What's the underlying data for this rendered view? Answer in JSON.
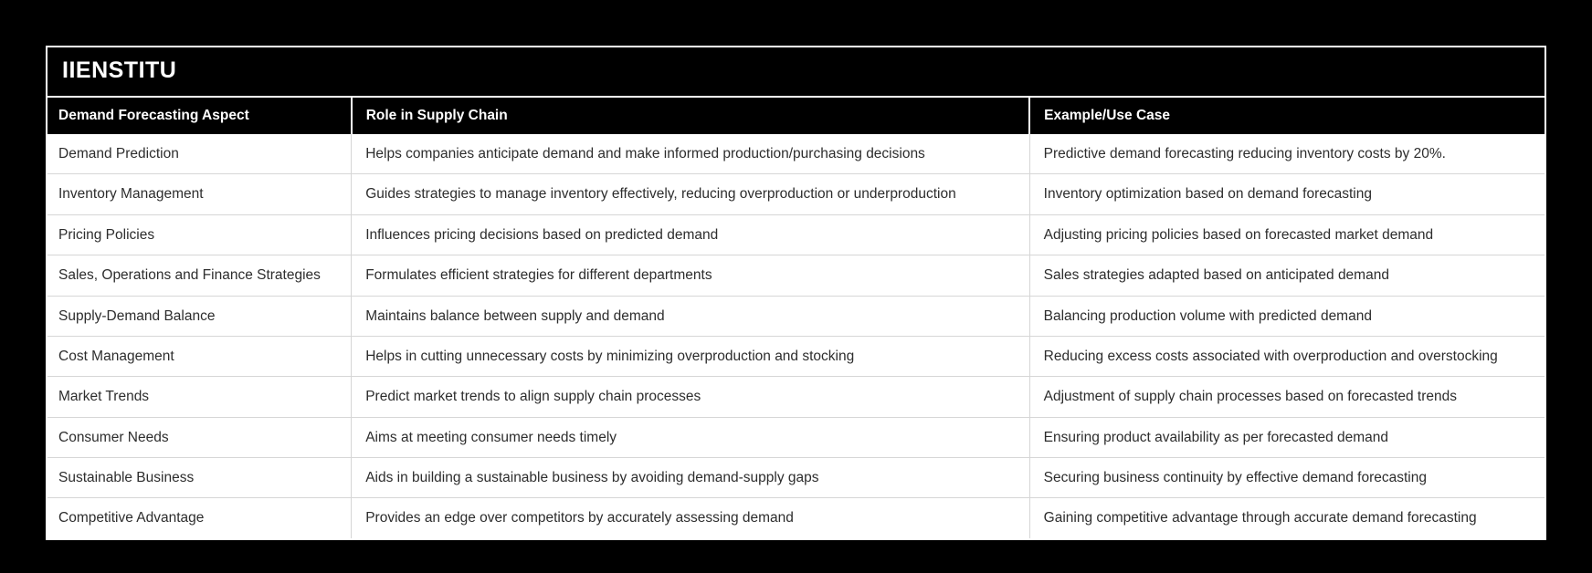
{
  "brand": {
    "title": "IIENSTITU"
  },
  "colors": {
    "page_background": "#000000",
    "header_background": "#000000",
    "header_text": "#ffffff",
    "row_background": "#ffffff",
    "body_text": "#2d2d2d",
    "grid_line": "#d6d6d6",
    "card_border": "#ffffff"
  },
  "table": {
    "columns": [
      "Demand Forecasting Aspect",
      "Role in Supply Chain",
      "Example/Use Case"
    ],
    "rows": [
      [
        "Demand Prediction",
        "Helps companies anticipate demand and make informed production/purchasing decisions",
        "Predictive demand forecasting reducing inventory costs by 20%."
      ],
      [
        "Inventory Management",
        "Guides strategies to manage inventory effectively, reducing overproduction or underproduction",
        "Inventory optimization based on demand forecasting"
      ],
      [
        "Pricing Policies",
        "Influences pricing decisions based on predicted demand",
        "Adjusting pricing policies based on forecasted market demand"
      ],
      [
        "Sales, Operations and Finance Strategies",
        "Formulates efficient strategies for different departments",
        "Sales strategies adapted based on anticipated demand"
      ],
      [
        "Supply-Demand Balance",
        "Maintains balance between supply and demand",
        "Balancing production volume with predicted demand"
      ],
      [
        "Cost Management",
        "Helps in cutting unnecessary costs by minimizing overproduction and stocking",
        "Reducing excess costs associated with overproduction and overstocking"
      ],
      [
        "Market Trends",
        "Predict market trends to align supply chain processes",
        "Adjustment of supply chain processes based on forecasted trends"
      ],
      [
        "Consumer Needs",
        "Aims at meeting consumer needs timely",
        "Ensuring product availability as per forecasted demand"
      ],
      [
        "Sustainable Business",
        "Aids in building a sustainable business by avoiding demand-supply gaps",
        "Securing business continuity by effective demand forecasting"
      ],
      [
        "Competitive Advantage",
        "Provides an edge over competitors by accurately assessing demand",
        "Gaining competitive advantage through accurate demand forecasting"
      ]
    ]
  }
}
